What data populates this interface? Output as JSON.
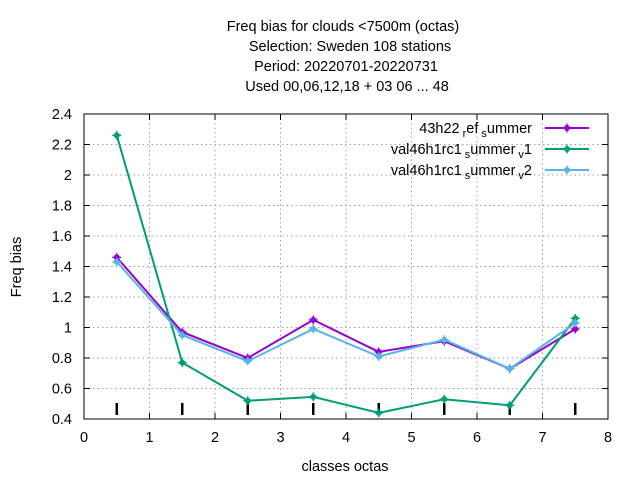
{
  "chart_data": {
    "type": "line",
    "title_lines": [
      "Freq bias  for clouds <7500m (octas)",
      "Selection: Sweden    108 stations",
      "Period: 20220701-20220731",
      "Used  00,06,12,18  + 03 06 ... 48"
    ],
    "xlabel": "classes octas",
    "ylabel": "Freq bias",
    "xlim": [
      0,
      8
    ],
    "ylim": [
      0.4,
      2.4
    ],
    "xticks": [
      "0",
      "1",
      "2",
      "3",
      "4",
      "5",
      "6",
      "7",
      "8"
    ],
    "yticks": [
      "0.4",
      "0.6",
      "0.8",
      "1",
      "1.2",
      "1.4",
      "1.6",
      "1.8",
      "2",
      "2.2",
      "2.4"
    ],
    "grid": true,
    "legend_position": "top-right",
    "x": [
      0.5,
      1.5,
      2.5,
      3.5,
      4.5,
      5.5,
      6.5,
      7.5
    ],
    "series": [
      {
        "name_parts": [
          "43h22",
          "r",
          "ef",
          "s",
          "ummer"
        ],
        "color": "#9400d3",
        "values": [
          1.46,
          0.97,
          0.8,
          1.05,
          0.84,
          0.91,
          0.73,
          0.99
        ]
      },
      {
        "name_parts": [
          "val46h1rc1",
          "s",
          "ummer",
          "v",
          "1"
        ],
        "color": "#009e73",
        "values": [
          2.26,
          0.77,
          0.52,
          0.545,
          0.44,
          0.53,
          0.49,
          1.06
        ]
      },
      {
        "name_parts": [
          "val46h1rc1",
          "s",
          "ummer",
          "v",
          "2"
        ],
        "color": "#56b4e9",
        "values": [
          1.43,
          0.95,
          0.78,
          0.99,
          0.81,
          0.92,
          0.73,
          1.03
        ]
      }
    ]
  }
}
